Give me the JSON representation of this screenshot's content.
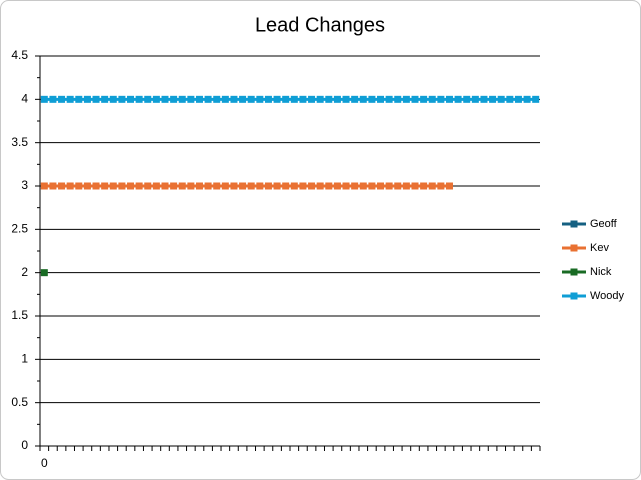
{
  "chart_data": {
    "type": "line",
    "title": "Lead Changes",
    "categories": [
      "0",
      null,
      null,
      null,
      null,
      null,
      null,
      null,
      null,
      null,
      null,
      null,
      null,
      null,
      null,
      null,
      null,
      null,
      null,
      null,
      null,
      null,
      null,
      null,
      null,
      null,
      null,
      null,
      null,
      null,
      null,
      null,
      null,
      null,
      null,
      null,
      null,
      null,
      null,
      null,
      null,
      null,
      null,
      null,
      null,
      null,
      null,
      null,
      null,
      null,
      null,
      null,
      null,
      null,
      null,
      null,
      null,
      null
    ],
    "series": [
      {
        "name": "Geoff",
        "color": "#156082",
        "values": [
          null,
          null,
          null,
          null,
          null,
          null,
          null,
          null,
          null,
          null,
          null,
          null,
          null,
          null,
          null,
          null,
          null,
          null,
          null,
          null,
          null,
          null,
          null,
          null,
          null,
          null,
          null,
          null,
          null,
          null,
          null,
          null,
          null,
          null,
          null,
          null,
          null,
          null,
          null,
          null,
          null,
          null,
          null,
          null,
          null,
          null,
          null,
          null,
          null,
          null,
          null,
          null,
          null,
          null,
          null,
          null,
          null,
          null
        ]
      },
      {
        "name": "Kev",
        "color": "#e97132",
        "values": [
          3,
          3,
          3,
          3,
          3,
          3,
          3,
          3,
          3,
          3,
          3,
          3,
          3,
          3,
          3,
          3,
          3,
          3,
          3,
          3,
          3,
          3,
          3,
          3,
          3,
          3,
          3,
          3,
          3,
          3,
          3,
          3,
          3,
          3,
          3,
          3,
          3,
          3,
          3,
          3,
          3,
          3,
          3,
          3,
          3,
          3,
          3,
          3,
          null,
          null,
          null,
          null,
          null,
          null,
          null,
          null,
          null,
          null
        ]
      },
      {
        "name": "Nick",
        "color": "#196b24",
        "values": [
          2,
          null,
          null,
          null,
          null,
          null,
          null,
          null,
          null,
          null,
          null,
          null,
          null,
          null,
          null,
          null,
          null,
          null,
          null,
          null,
          null,
          null,
          null,
          null,
          null,
          null,
          null,
          null,
          null,
          null,
          null,
          null,
          null,
          null,
          null,
          null,
          null,
          null,
          null,
          null,
          null,
          null,
          null,
          null,
          null,
          null,
          null,
          null,
          null,
          null,
          null,
          null,
          null,
          null,
          null,
          null,
          null,
          null
        ]
      },
      {
        "name": "Woody",
        "color": "#0f9ed5",
        "values": [
          4,
          4,
          4,
          4,
          4,
          4,
          4,
          4,
          4,
          4,
          4,
          4,
          4,
          4,
          4,
          4,
          4,
          4,
          4,
          4,
          4,
          4,
          4,
          4,
          4,
          4,
          4,
          4,
          4,
          4,
          4,
          4,
          4,
          4,
          4,
          4,
          4,
          4,
          4,
          4,
          4,
          4,
          4,
          4,
          4,
          4,
          4,
          4,
          4,
          4,
          4,
          4,
          4,
          4,
          4,
          4,
          4,
          4
        ]
      }
    ],
    "ylim": [
      0,
      4.5
    ],
    "yticks": [
      0,
      0.5,
      1,
      1.5,
      2,
      2.5,
      3,
      3.5,
      4,
      4.5
    ],
    "grid": true,
    "legend": "right"
  }
}
